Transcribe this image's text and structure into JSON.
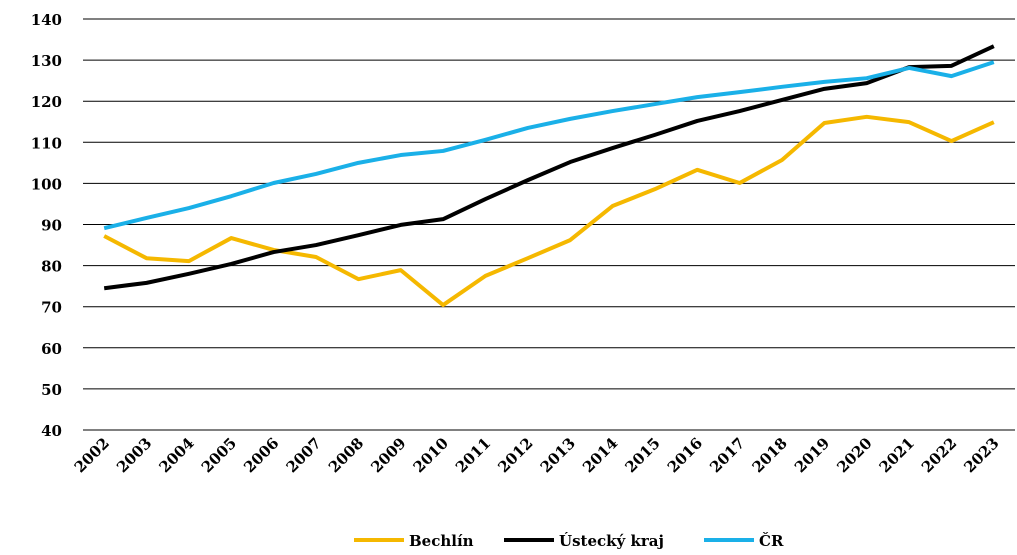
{
  "chart_data": {
    "type": "line",
    "categories": [
      "2002",
      "2003",
      "2004",
      "2005",
      "2006",
      "2007",
      "2008",
      "2009",
      "2010",
      "2011",
      "2012",
      "2013",
      "2014",
      "2015",
      "2016",
      "2017",
      "2018",
      "2019",
      "2020",
      "2021",
      "2022",
      "2023"
    ],
    "series": [
      {
        "name": "Bechlín",
        "color": "#f5b800",
        "values": [
          87.2,
          81.8,
          81.1,
          86.7,
          83.8,
          82.1,
          76.7,
          78.9,
          70.4,
          77.5,
          81.8,
          86.2,
          94.5,
          98.6,
          103.3,
          100.1,
          105.7,
          114.7,
          116.2,
          114.9,
          110.3,
          114.9
        ]
      },
      {
        "name": "Ústecký kraj",
        "color": "#000000",
        "values": [
          74.5,
          75.8,
          78.0,
          80.4,
          83.3,
          85.0,
          87.4,
          89.9,
          91.3,
          96.2,
          100.8,
          105.2,
          108.6,
          111.8,
          115.2,
          117.6,
          120.3,
          123.0,
          124.4,
          128.3,
          128.6,
          133.4
        ]
      },
      {
        "name": "ČR",
        "color": "#1ab0e8",
        "values": [
          89.1,
          91.6,
          94.0,
          96.9,
          100.1,
          102.3,
          105.0,
          106.9,
          107.9,
          110.6,
          113.5,
          115.7,
          117.6,
          119.3,
          121.0,
          122.2,
          123.5,
          124.7,
          125.6,
          128.1,
          126.1,
          129.5
        ]
      }
    ],
    "ylim": [
      40,
      140
    ],
    "yticks": [
      40,
      50,
      60,
      70,
      80,
      90,
      100,
      110,
      120,
      130,
      140
    ],
    "grid": true,
    "legend": "bottom"
  }
}
